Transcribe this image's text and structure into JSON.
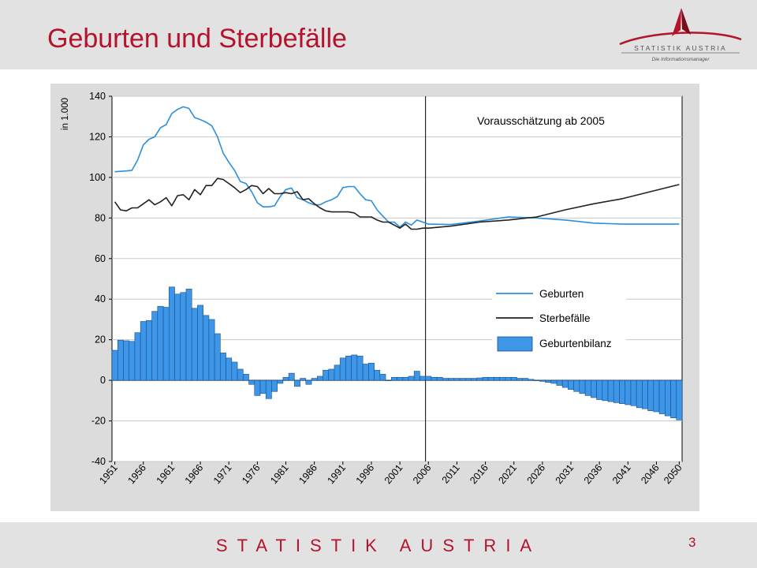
{
  "header": {
    "title": "Geburten und Sterbefälle",
    "logo_text": "STATISTIK AUSTRIA",
    "logo_tagline": "Die Informationsmanager"
  },
  "footer": {
    "brand": "STATISTIK AUSTRIA",
    "page_number": "3"
  },
  "colors": {
    "accent": "#b5122b",
    "births_line": "#2a8fdc",
    "deaths_line": "#222222",
    "balance_bar": "#3d96e8"
  },
  "chart_data": {
    "type": "line",
    "title": "",
    "ylabel": "in 1.000",
    "xlabel": "",
    "ylim": [
      -40,
      140
    ],
    "xlim": [
      1951,
      2050
    ],
    "yticks": [
      -40,
      -20,
      0,
      20,
      40,
      60,
      80,
      100,
      120,
      140
    ],
    "xticks": [
      1951,
      1956,
      1961,
      1966,
      1971,
      1976,
      1981,
      1986,
      1991,
      1996,
      2001,
      2006,
      2011,
      2016,
      2021,
      2026,
      2031,
      2036,
      2041,
      2046,
      2050
    ],
    "grid": "horizontal",
    "legend_position": "right",
    "forecast_start": 2006,
    "annotation": "Vorausschätzung ab 2005",
    "series": [
      {
        "name": "Geburten",
        "type": "line",
        "x": [
          1951,
          1952,
          1953,
          1954,
          1955,
          1956,
          1957,
          1958,
          1959,
          1960,
          1961,
          1962,
          1963,
          1964,
          1965,
          1966,
          1967,
          1968,
          1969,
          1970,
          1971,
          1972,
          1973,
          1974,
          1975,
          1976,
          1977,
          1978,
          1979,
          1980,
          1981,
          1982,
          1983,
          1984,
          1985,
          1986,
          1987,
          1988,
          1989,
          1990,
          1991,
          1992,
          1993,
          1994,
          1995,
          1996,
          1997,
          1998,
          1999,
          2000,
          2001,
          2002,
          2003,
          2004,
          2005,
          2006,
          2010,
          2015,
          2020,
          2025,
          2030,
          2035,
          2040,
          2045,
          2050
        ],
        "values": [
          102.8,
          103.0,
          103.2,
          103.5,
          108.5,
          116.0,
          118.8,
          120.0,
          124.5,
          126.0,
          131.5,
          133.5,
          134.8,
          134.0,
          129.5,
          128.5,
          127.2,
          125.5,
          120.0,
          112.0,
          107.5,
          103.5,
          98.0,
          97.0,
          93.0,
          87.5,
          85.5,
          85.5,
          86.0,
          90.5,
          94.0,
          94.8,
          90.0,
          89.0,
          87.5,
          86.5,
          86.5,
          88.0,
          89.0,
          90.5,
          95.0,
          95.5,
          95.5,
          92.0,
          89.0,
          88.5,
          84.0,
          81.0,
          78.0,
          78.0,
          75.5,
          78.0,
          76.5,
          79.0,
          78.0,
          77.0,
          76.8,
          78.5,
          80.5,
          80.0,
          79.0,
          77.5,
          77.0,
          77.0,
          77.0
        ]
      },
      {
        "name": "Sterbefälle",
        "type": "line",
        "x": [
          1951,
          1952,
          1953,
          1954,
          1955,
          1956,
          1957,
          1958,
          1959,
          1960,
          1961,
          1962,
          1963,
          1964,
          1965,
          1966,
          1967,
          1968,
          1969,
          1970,
          1971,
          1972,
          1973,
          1974,
          1975,
          1976,
          1977,
          1978,
          1979,
          1980,
          1981,
          1982,
          1983,
          1984,
          1985,
          1986,
          1987,
          1988,
          1989,
          1990,
          1991,
          1992,
          1993,
          1994,
          1995,
          1996,
          1997,
          1998,
          1999,
          2000,
          2001,
          2002,
          2003,
          2004,
          2005,
          2006,
          2010,
          2015,
          2020,
          2025,
          2030,
          2035,
          2040,
          2045,
          2050
        ],
        "values": [
          88.0,
          84.0,
          83.5,
          85.0,
          85.0,
          87.0,
          89.0,
          86.5,
          88.0,
          90.0,
          86.0,
          91.0,
          91.5,
          89.0,
          94.0,
          91.5,
          96.0,
          96.0,
          99.5,
          99.0,
          97.0,
          95.0,
          92.5,
          94.0,
          96.0,
          95.5,
          92.0,
          94.5,
          92.0,
          92.0,
          92.5,
          92.0,
          93.0,
          89.0,
          89.5,
          87.0,
          85.0,
          83.5,
          83.0,
          83.0,
          83.0,
          83.0,
          82.5,
          80.5,
          80.5,
          80.5,
          79.0,
          78.0,
          78.0,
          76.5,
          75.0,
          77.0,
          74.5,
          74.5,
          75.0,
          75.0,
          76.0,
          78.0,
          79.0,
          80.5,
          84.0,
          87.0,
          89.5,
          93.0,
          96.5
        ]
      },
      {
        "name": "Geburtenbilanz",
        "type": "bar",
        "x": [
          1951,
          1952,
          1953,
          1954,
          1955,
          1956,
          1957,
          1958,
          1959,
          1960,
          1961,
          1962,
          1963,
          1964,
          1965,
          1966,
          1967,
          1968,
          1969,
          1970,
          1971,
          1972,
          1973,
          1974,
          1975,
          1976,
          1977,
          1978,
          1979,
          1980,
          1981,
          1982,
          1983,
          1984,
          1985,
          1986,
          1987,
          1988,
          1989,
          1990,
          1991,
          1992,
          1993,
          1994,
          1995,
          1996,
          1997,
          1998,
          1999,
          2000,
          2001,
          2002,
          2003,
          2004,
          2005,
          2006,
          2007,
          2008,
          2009,
          2010,
          2011,
          2012,
          2013,
          2014,
          2015,
          2016,
          2017,
          2018,
          2019,
          2020,
          2021,
          2022,
          2023,
          2024,
          2025,
          2026,
          2027,
          2028,
          2029,
          2030,
          2031,
          2032,
          2033,
          2034,
          2035,
          2036,
          2037,
          2038,
          2039,
          2040,
          2041,
          2042,
          2043,
          2044,
          2045,
          2046,
          2047,
          2048,
          2049,
          2050
        ],
        "values": [
          14.8,
          19.8,
          19.5,
          19.2,
          23.5,
          29.0,
          29.5,
          34.0,
          36.5,
          36.0,
          46.0,
          42.5,
          43.3,
          45.0,
          35.5,
          37.0,
          32.0,
          30.0,
          23.0,
          13.5,
          11.0,
          9.0,
          5.5,
          3.0,
          -2.0,
          -7.5,
          -6.5,
          -9.0,
          -5.5,
          -1.5,
          1.5,
          3.5,
          -3.0,
          1.0,
          -2.0,
          1.0,
          2.0,
          5.0,
          5.5,
          7.5,
          11.0,
          12.0,
          12.5,
          12.0,
          8.0,
          8.5,
          5.0,
          3.0,
          0.0,
          1.5,
          1.5,
          1.5,
          2.0,
          4.5,
          2.0,
          2.0,
          1.5,
          1.5,
          1.0,
          1.0,
          1.0,
          1.0,
          1.0,
          1.0,
          1.2,
          1.5,
          1.5,
          1.5,
          1.5,
          1.5,
          1.5,
          1.0,
          1.0,
          0.5,
          0.0,
          -0.5,
          -1.0,
          -1.5,
          -2.5,
          -3.5,
          -4.5,
          -5.5,
          -6.5,
          -7.5,
          -8.5,
          -9.5,
          -10.0,
          -10.5,
          -11.0,
          -11.5,
          -12.0,
          -12.5,
          -13.5,
          -14.0,
          -15.0,
          -15.5,
          -16.5,
          -17.5,
          -18.5,
          -19.5
        ]
      }
    ]
  }
}
